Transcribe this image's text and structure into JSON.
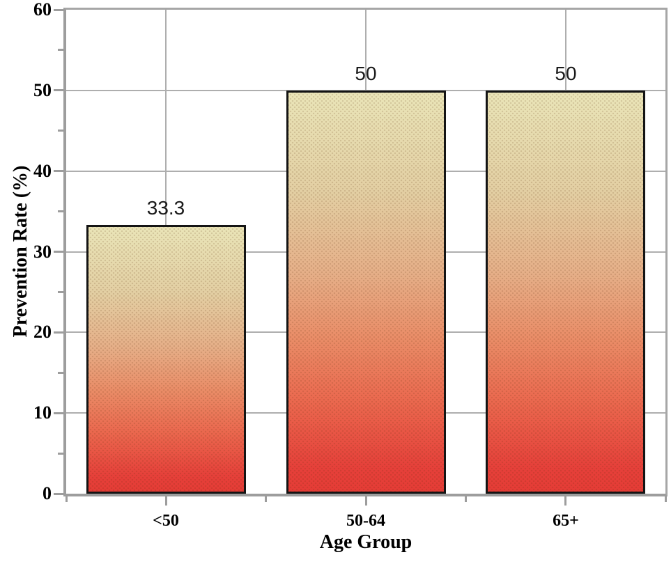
{
  "chart_data": {
    "type": "bar",
    "categories": [
      "<50",
      "50-64",
      "65+"
    ],
    "values": [
      33.3,
      50,
      50
    ],
    "value_labels": [
      "33.3",
      "50",
      "50"
    ],
    "xlabel": "Age Group",
    "ylabel": "Prevention Rate (%)",
    "ylim": [
      0,
      60
    ],
    "yticks": [
      0,
      10,
      20,
      30,
      40,
      50,
      60
    ],
    "ytick_minor_step": 5,
    "grid": {
      "horizontal": true,
      "vertical": true,
      "color": "#aeaeae"
    },
    "legend": "none",
    "style": {
      "axis_color": "#9d9d9d",
      "frame_color": "#a6a6a6",
      "gridline_color": "#aeaeae",
      "bar_border_color": "#141414",
      "value_label_color": "#1a1a1a",
      "text_color": "#000000",
      "bar_gradient": [
        {
          "pos": 0,
          "color": "#eae5b8"
        },
        {
          "pos": 25,
          "color": "#e3cfa3"
        },
        {
          "pos": 45,
          "color": "#e6b089"
        },
        {
          "pos": 62,
          "color": "#ea8c67"
        },
        {
          "pos": 78,
          "color": "#eb674e"
        },
        {
          "pos": 94,
          "color": "#e6403a"
        },
        {
          "pos": 100,
          "color": "#e53c36"
        }
      ]
    }
  }
}
